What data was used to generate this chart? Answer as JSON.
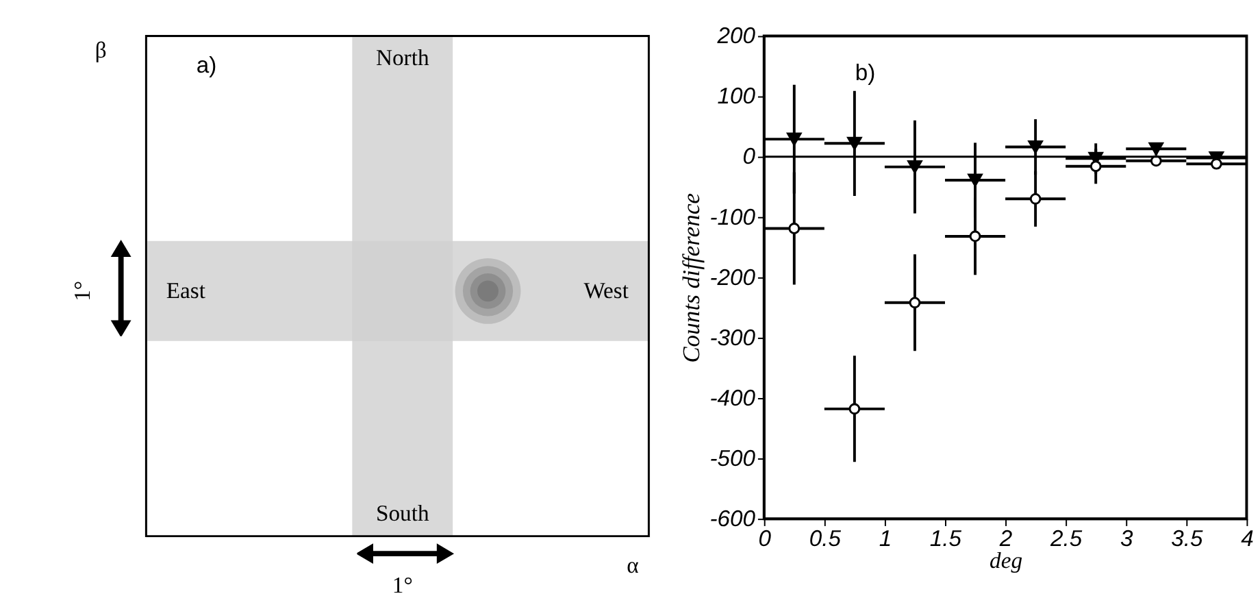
{
  "chart_data": [
    {
      "type": "other",
      "annotations": [
        "a)",
        "North",
        "South",
        "East",
        "West",
        "β",
        "α",
        "1°",
        "1°"
      ]
    },
    {
      "type": "scatter",
      "annotations": [
        "b)"
      ],
      "xlabel": "deg",
      "ylabel": "Counts difference",
      "x": [
        0.25,
        0.75,
        1.25,
        1.75,
        2.25,
        2.75,
        3.25,
        3.75
      ],
      "series": [
        {
          "color": "#000000",
          "marker": "triangle",
          "values": [
            29,
            22,
            -17,
            -39,
            16,
            -3,
            13,
            -2
          ],
          "errors": [
            90,
            87,
            77,
            62,
            46,
            25,
            10,
            6
          ],
          "xerrors": [
            0.25,
            0.25,
            0.25,
            0.25,
            0.25,
            0.25,
            0.25,
            0.25
          ]
        },
        {
          "color": "#000000",
          "marker": "circle",
          "values": [
            -119,
            -418,
            -242,
            -132,
            -70,
            -16,
            -7,
            -12
          ],
          "errors": [
            93,
            88,
            80,
            64,
            46,
            29,
            8,
            5
          ],
          "xerrors": [
            0.25,
            0.25,
            0.25,
            0.25,
            0.25,
            0.25,
            0.25,
            0.25
          ]
        }
      ],
      "xlim": [
        0,
        4
      ],
      "xticks": [
        0,
        0.5,
        1,
        1.5,
        2,
        2.5,
        3,
        3.5,
        4
      ],
      "ylim": [
        -600,
        200
      ],
      "yticks": [
        -600,
        -500,
        -400,
        -300,
        -200,
        -100,
        0,
        100,
        200
      ],
      "ref_lines": [
        {
          "axis": "y",
          "value": 0,
          "color": "#000000"
        }
      ],
      "grid": false
    }
  ]
}
